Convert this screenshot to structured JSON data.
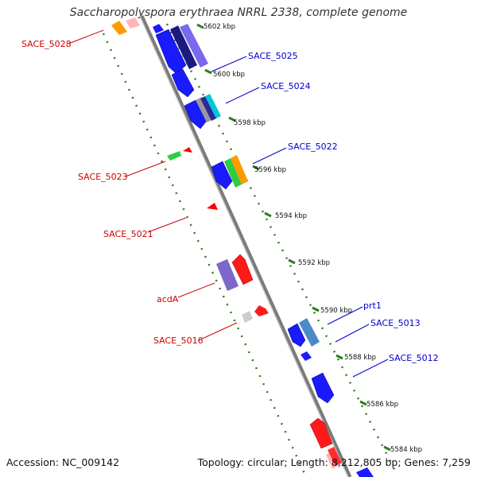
{
  "title": "Saccharopolyspora erythraea NRRL 2338, complete genome",
  "accession": "Accession: NC_009142",
  "topology": "Topology: circular; Length: 8,212,805 bp; Genes: 7,259",
  "ruler": {
    "unit": "kbp",
    "ticks": [
      {
        "kbp": 5602,
        "label": "5602 kbp"
      },
      {
        "kbp": 5600,
        "label": "5600 kbp"
      },
      {
        "kbp": 5598,
        "label": "5598 kbp"
      },
      {
        "kbp": 5596,
        "label": "5596 kbp"
      },
      {
        "kbp": 5594,
        "label": "5594 kbp"
      },
      {
        "kbp": 5592,
        "label": "5592 kbp"
      },
      {
        "kbp": 5590,
        "label": "5590 kbp"
      },
      {
        "kbp": 5588,
        "label": "5588 kbp"
      },
      {
        "kbp": 5586,
        "label": "5586 kbp"
      },
      {
        "kbp": 5584,
        "label": "5584 kbp"
      }
    ]
  },
  "colors": {
    "forward_label": "#0000cc",
    "reverse_label": "#cc0000",
    "backbone": "#888888",
    "ruler_dash": "#2e7d1f"
  },
  "gene_labels": [
    {
      "name": "SACE_5028",
      "strand": "reverse"
    },
    {
      "name": "SACE_5025",
      "strand": "forward"
    },
    {
      "name": "SACE_5024",
      "strand": "forward"
    },
    {
      "name": "SACE_5023",
      "strand": "reverse"
    },
    {
      "name": "SACE_5022",
      "strand": "forward"
    },
    {
      "name": "SACE_5021",
      "strand": "reverse"
    },
    {
      "name": "acdA",
      "strand": "reverse"
    },
    {
      "name": "SACE_5016",
      "strand": "reverse"
    },
    {
      "name": "prt1",
      "strand": "forward"
    },
    {
      "name": "SACE_5013",
      "strand": "forward"
    },
    {
      "name": "SACE_5012",
      "strand": "forward"
    }
  ]
}
